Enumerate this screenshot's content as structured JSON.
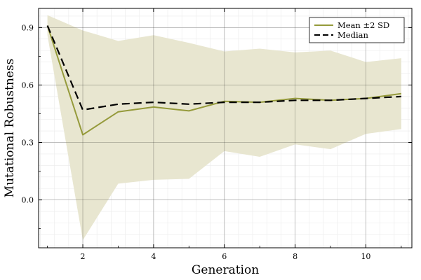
{
  "chart_data": {
    "type": "line",
    "xlabel": "Generation",
    "ylabel": "Mutational Robustness",
    "xlim": [
      0.75,
      11.3
    ],
    "ylim": [
      -0.25,
      1.0
    ],
    "xticks": [
      2,
      4,
      6,
      8,
      10
    ],
    "yticks": [
      0.0,
      0.3,
      0.6,
      0.9
    ],
    "xtick_labels": [
      "2",
      "4",
      "6",
      "8",
      "10"
    ],
    "ytick_labels": [
      "0.0",
      "0.3",
      "0.6",
      "0.9"
    ],
    "grid": true,
    "minor_grid": true,
    "legend_position": "top-right",
    "x": [
      1,
      2,
      3,
      4,
      5,
      6,
      7,
      8,
      9,
      10,
      11
    ],
    "series": [
      {
        "name": "Mean ±2 SD",
        "style": "solid",
        "color": "#959a3b",
        "values": [
          0.91,
          0.34,
          0.46,
          0.485,
          0.465,
          0.515,
          0.51,
          0.53,
          0.52,
          0.53,
          0.555
        ],
        "band_upper": [
          0.965,
          0.885,
          0.83,
          0.86,
          0.82,
          0.775,
          0.79,
          0.77,
          0.78,
          0.72,
          0.74
        ],
        "band_lower": [
          0.86,
          -0.21,
          0.085,
          0.105,
          0.11,
          0.255,
          0.225,
          0.29,
          0.265,
          0.345,
          0.37
        ],
        "band_color": "#e8e6d0"
      },
      {
        "name": "Median",
        "style": "dashed",
        "color": "#000000",
        "values": [
          0.91,
          0.47,
          0.5,
          0.51,
          0.5,
          0.51,
          0.51,
          0.52,
          0.52,
          0.53,
          0.54
        ]
      }
    ]
  }
}
